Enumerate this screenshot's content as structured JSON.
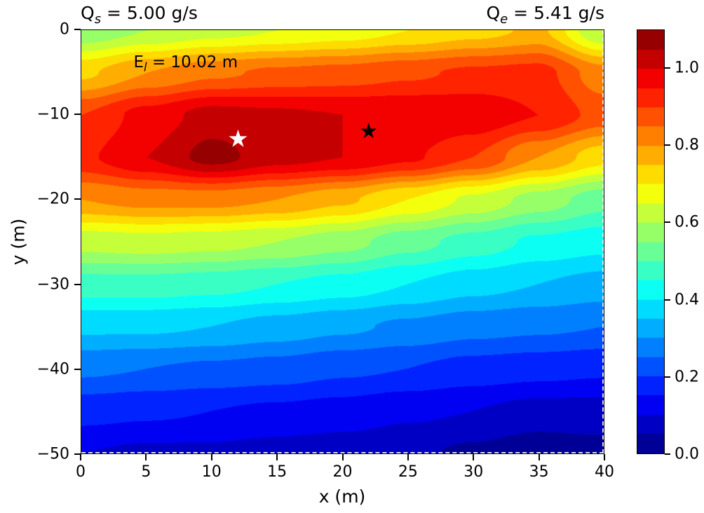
{
  "chart_data": {
    "type": "heatmap",
    "title_left": {
      "sym": "Q",
      "sub": "s",
      "rest": " = 5.00 g/s"
    },
    "title_right": {
      "sym": "Q",
      "sub": "e",
      "rest": " = 5.41 g/s"
    },
    "annotation": {
      "sym": "E",
      "sub": "l",
      "rest": " = 10.02 m"
    },
    "xlabel": "x (m)",
    "ylabel": "y (m)",
    "xlim": [
      0,
      40
    ],
    "ylim": [
      -50,
      0
    ],
    "x_ticks": [
      0,
      5,
      10,
      15,
      20,
      25,
      30,
      35,
      40
    ],
    "x_tick_labels": [
      "0",
      "5",
      "10",
      "15",
      "20",
      "25",
      "30",
      "35",
      "40"
    ],
    "y_ticks": [
      0,
      -10,
      -20,
      -30,
      -40,
      -50
    ],
    "y_tick_labels": [
      "0",
      "−10",
      "−20",
      "−30",
      "−40",
      "−50"
    ],
    "colormap": "jet",
    "vmin": 0.0,
    "vmax": 1.1,
    "contour_step": 0.05,
    "colorbar": {
      "ticks": [
        0.0,
        0.2,
        0.4,
        0.6,
        0.8,
        1.0
      ],
      "tick_labels": [
        "0.0",
        "0.2",
        "0.4",
        "0.6",
        "0.8",
        "1.0"
      ]
    },
    "grid": {
      "x": [
        0,
        5,
        10,
        15,
        20,
        25,
        30,
        35,
        40
      ],
      "y": [
        0,
        -5,
        -10,
        -15,
        -20,
        -25,
        -30,
        -35,
        -40,
        -45,
        -50
      ],
      "values": [
        [
          0.56,
          0.6,
          0.63,
          0.65,
          0.67,
          0.7,
          0.73,
          0.76,
          0.6
        ],
        [
          0.74,
          0.8,
          0.84,
          0.86,
          0.87,
          0.89,
          0.91,
          0.92,
          0.82
        ],
        [
          0.9,
          0.97,
          1.02,
          1.01,
          1.0,
          1.0,
          0.99,
          0.95,
          0.88
        ],
        [
          0.94,
          1.0,
          1.07,
          1.02,
          1.0,
          0.96,
          0.9,
          0.8,
          0.72
        ],
        [
          0.8,
          0.82,
          0.82,
          0.8,
          0.76,
          0.7,
          0.64,
          0.58,
          0.52
        ],
        [
          0.62,
          0.63,
          0.62,
          0.6,
          0.57,
          0.52,
          0.48,
          0.44,
          0.42
        ],
        [
          0.48,
          0.48,
          0.47,
          0.45,
          0.43,
          0.4,
          0.37,
          0.35,
          0.33
        ],
        [
          0.36,
          0.36,
          0.35,
          0.33,
          0.31,
          0.29,
          0.27,
          0.26,
          0.25
        ],
        [
          0.26,
          0.25,
          0.24,
          0.23,
          0.21,
          0.2,
          0.18,
          0.17,
          0.16
        ],
        [
          0.17,
          0.16,
          0.15,
          0.14,
          0.13,
          0.11,
          0.1,
          0.08,
          0.08
        ],
        [
          0.1,
          0.09,
          0.09,
          0.08,
          0.07,
          0.06,
          0.04,
          0.02,
          0.03
        ]
      ]
    },
    "markers": [
      {
        "name": "estimated-source",
        "symbol": "star",
        "color": "#ffffff",
        "x": 12,
        "y": -13,
        "size": 34
      },
      {
        "name": "true-source",
        "symbol": "star",
        "color": "#000000",
        "x": 22,
        "y": -12.1,
        "size": 30
      }
    ]
  }
}
